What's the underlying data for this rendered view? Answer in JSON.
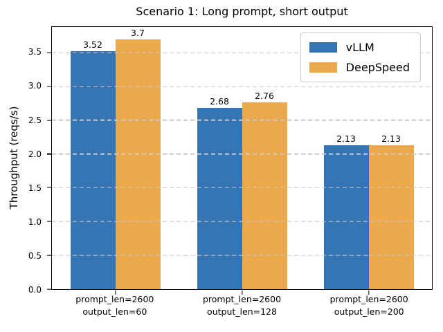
{
  "figure": {
    "background": "#ffffff",
    "frame_color": "#000000"
  },
  "chart_data": {
    "type": "bar",
    "title": "Scenario 1: Long prompt, short output",
    "ylabel": "Throughput (reqs/s)",
    "xlabel": "",
    "categories": [
      "prompt_len=2600\noutput_len=60",
      "prompt_len=2600\noutput_len=128",
      "prompt_len=2600\noutput_len=200"
    ],
    "series": [
      {
        "name": "vLLM",
        "color": "#3575b4",
        "values": [
          3.52,
          2.68,
          2.13
        ],
        "labels": [
          "3.52",
          "2.68",
          "2.13"
        ]
      },
      {
        "name": "DeepSpeed",
        "color": "#eca94b",
        "values": [
          3.7,
          2.76,
          2.13
        ],
        "labels": [
          "3.7",
          "2.76",
          "2.13"
        ]
      }
    ],
    "ylim": [
      0,
      3.88
    ],
    "yticks": [
      "0.0",
      "0.5",
      "1.0",
      "1.5",
      "2.0",
      "2.5",
      "3.0",
      "3.5"
    ],
    "grid": {
      "axis": "y",
      "style": "dashed",
      "color": "#c8c8c8",
      "on_top_of_bars": true
    },
    "legend": {
      "position": "upper right",
      "entries": [
        "vLLM",
        "DeepSpeed"
      ]
    },
    "bar_value_labels": true
  }
}
